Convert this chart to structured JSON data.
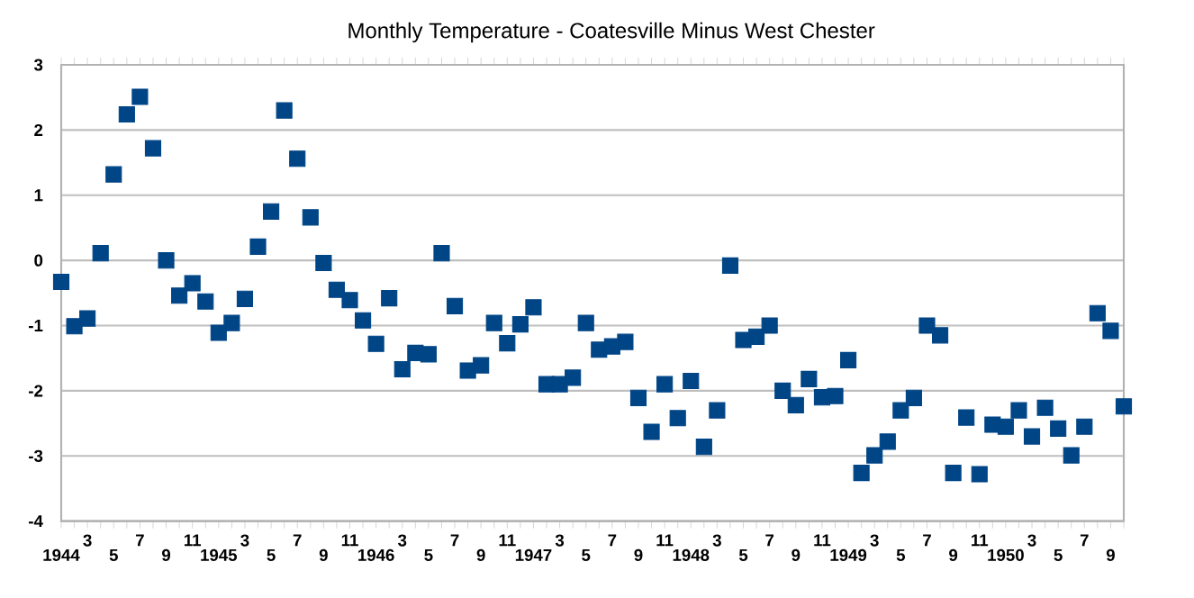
{
  "chart_data": {
    "type": "scatter",
    "title": "Monthly Temperature - Coatesville Minus West Chester",
    "categories": [
      "1944",
      null,
      "3",
      null,
      "5",
      null,
      "7",
      null,
      "9",
      null,
      "11",
      null,
      "1945",
      null,
      "3",
      null,
      "5",
      null,
      "7",
      null,
      "9",
      null,
      "11",
      null,
      "1946",
      null,
      "3",
      null,
      "5",
      null,
      "7",
      null,
      "9",
      null,
      "11",
      null,
      "1947",
      null,
      "3",
      null,
      "5",
      null,
      "7",
      null,
      "9",
      null,
      "11",
      null,
      "1948",
      null,
      "3",
      null,
      "5",
      null,
      "7",
      null,
      "9",
      null,
      "11",
      null,
      "1949",
      null,
      "3",
      null,
      "5",
      null,
      "7",
      null,
      "9",
      null,
      "11",
      null,
      "1950",
      null,
      "3",
      null,
      "5",
      null,
      "7",
      null,
      "9",
      null
    ],
    "values": [
      -0.33,
      -1.01,
      -0.89,
      0.11,
      1.32,
      2.24,
      2.51,
      1.72,
      0.0,
      -0.54,
      -0.35,
      -0.63,
      -1.11,
      -0.96,
      -0.59,
      0.21,
      0.75,
      2.3,
      1.56,
      0.66,
      -0.04,
      -0.45,
      -0.61,
      -0.92,
      -1.28,
      -0.58,
      -1.67,
      -1.42,
      -1.44,
      0.11,
      -0.7,
      -1.69,
      -1.61,
      -0.96,
      -1.27,
      -0.98,
      -0.72,
      -1.9,
      -1.9,
      -1.8,
      -0.96,
      -1.37,
      -1.32,
      -1.25,
      -2.11,
      -2.63,
      -1.9,
      -2.42,
      -1.85,
      -2.86,
      -2.3,
      -0.08,
      -1.22,
      -1.17,
      -1.0,
      -2.0,
      -2.22,
      -1.82,
      -2.1,
      -2.08,
      -1.53,
      -3.26,
      -2.99,
      -2.78,
      -2.3,
      -2.11,
      -1.0,
      -1.15,
      -3.26,
      -2.41,
      -3.28,
      -2.52,
      -2.55,
      -2.3,
      -2.7,
      -2.26,
      -2.58,
      -2.99,
      -2.55,
      -0.81,
      -1.08,
      -2.24
    ],
    "color": "#004586",
    "marker": "square",
    "grid": "y",
    "ylim": [
      -4,
      3
    ],
    "yticks": [
      -4,
      -3,
      -2,
      -1,
      0,
      1,
      2,
      3
    ]
  }
}
